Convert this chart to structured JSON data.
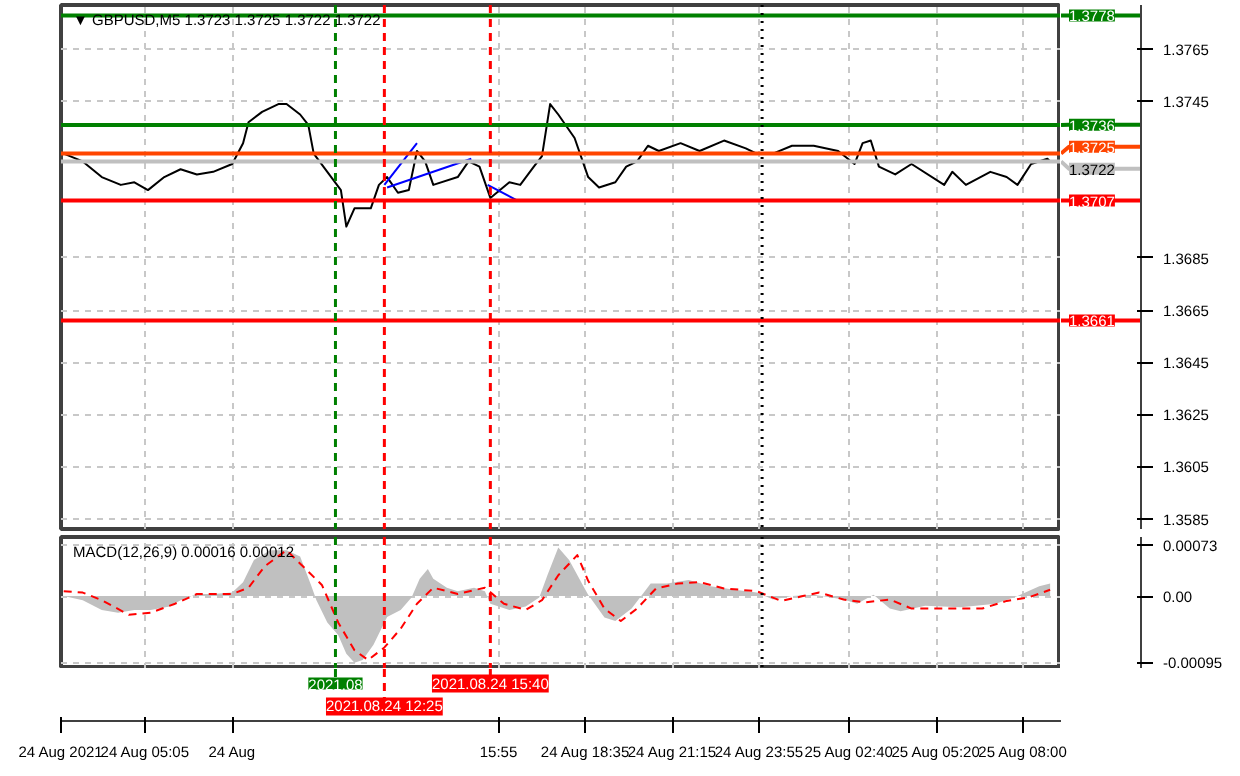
{
  "chart_data": [
    {
      "type": "line",
      "title": "▼ GBPUSD,M5  1.3723 1.3725 1.3722 1.3722",
      "grid": true,
      "tick_labels": "y",
      "xlim": [
        "2021-08-24T02:30",
        "2021-08-25T09:10"
      ],
      "ylim": [
        1.3581,
        1.3782
      ],
      "xticks": [
        {
          "value": "2021-08-24T02:30",
          "label": null
        },
        {
          "value": "2021-08-24T05:05",
          "label": null
        },
        {
          "value": "2021-08-24T07:45",
          "label": null
        },
        {
          "value": "2021-08-24T15:55",
          "label": null
        },
        {
          "value": "2021-08-24T18:35",
          "label": null
        },
        {
          "value": "2021-08-24T21:15",
          "label": null
        },
        {
          "value": "2021-08-24T23:55",
          "label": null
        },
        {
          "value": "2021-08-25T02:40",
          "label": null
        },
        {
          "value": "2021-08-25T05:20",
          "label": null
        },
        {
          "value": "2021-08-25T08:00",
          "label": null
        }
      ],
      "yticks": [
        1.3765,
        1.3745,
        1.3685,
        1.3665,
        1.3645,
        1.3625,
        1.3605,
        1.3585
      ],
      "series": [
        {
          "color": "#000000",
          "x": [
            "2021-08-24T02:35",
            "2021-08-24T03:10",
            "2021-08-24T03:45",
            "2021-08-24T04:20",
            "2021-08-24T04:45",
            "2021-08-24T05:10",
            "2021-08-24T05:40",
            "2021-08-24T06:10",
            "2021-08-24T06:40",
            "2021-08-24T07:10",
            "2021-08-24T07:45",
            "2021-08-24T08:05",
            "2021-08-24T08:15",
            "2021-08-24T08:40",
            "2021-08-24T09:10",
            "2021-08-24T09:25",
            "2021-08-24T09:50",
            "2021-08-24T10:05",
            "2021-08-24T10:15",
            "2021-08-24T10:40",
            "2021-08-24T11:05",
            "2021-08-24T11:15",
            "2021-08-24T11:30",
            "2021-08-24T12:00",
            "2021-08-24T12:15",
            "2021-08-24T12:30",
            "2021-08-24T12:50",
            "2021-08-24T13:10",
            "2021-08-24T13:25",
            "2021-08-24T13:40",
            "2021-08-24T13:55",
            "2021-08-24T14:40",
            "2021-08-24T15:00",
            "2021-08-24T15:20",
            "2021-08-24T15:40",
            "2021-08-24T16:15",
            "2021-08-24T16:35",
            "2021-08-24T17:00",
            "2021-08-24T17:15",
            "2021-08-24T17:30",
            "2021-08-24T17:45",
            "2021-08-24T18:15",
            "2021-08-24T18:40",
            "2021-08-24T19:00",
            "2021-08-24T19:30",
            "2021-08-24T19:50",
            "2021-08-24T20:10",
            "2021-08-24T20:30",
            "2021-08-24T20:50",
            "2021-08-24T21:30",
            "2021-08-24T22:05",
            "2021-08-24T22:50",
            "2021-08-24T23:30",
            "2021-08-24T23:50",
            "2021-08-25T00:20",
            "2021-08-25T00:55",
            "2021-08-25T01:35",
            "2021-08-25T02:20",
            "2021-08-25T02:50",
            "2021-08-25T03:05",
            "2021-08-25T03:20",
            "2021-08-25T03:35",
            "2021-08-25T04:05",
            "2021-08-25T04:35",
            "2021-08-25T05:35",
            "2021-08-25T05:50",
            "2021-08-25T06:15",
            "2021-08-25T07:00",
            "2021-08-25T07:30",
            "2021-08-25T07:50",
            "2021-08-25T08:15",
            "2021-08-25T08:45",
            "2021-08-25T08:50"
          ],
          "values": [
            1.3725,
            1.3722,
            1.3716,
            1.3713,
            1.3714,
            1.3711,
            1.3716,
            1.3719,
            1.3717,
            1.3718,
            1.3721,
            1.3729,
            1.3737,
            1.3741,
            1.3744,
            1.3744,
            1.374,
            1.3736,
            1.3725,
            1.3718,
            1.3711,
            1.3697,
            1.3704,
            1.3704,
            1.3713,
            1.3716,
            1.371,
            1.3711,
            1.3726,
            1.3722,
            1.3713,
            1.3716,
            1.3722,
            1.372,
            1.3708,
            1.3714,
            1.3713,
            1.372,
            1.3724,
            1.3744,
            1.374,
            1.3731,
            1.3716,
            1.3712,
            1.3714,
            1.372,
            1.3722,
            1.3728,
            1.3726,
            1.3729,
            1.3726,
            1.373,
            1.3727,
            1.3725,
            1.3725,
            1.3728,
            1.3728,
            1.3726,
            1.3721,
            1.3729,
            1.373,
            1.372,
            1.3717,
            1.3721,
            1.3713,
            1.3718,
            1.3713,
            1.3718,
            1.3716,
            1.3713,
            1.3721,
            1.3723,
            1.3722
          ]
        },
        {
          "color": "#0000ff",
          "x": [
            "2021-08-24T12:25",
            "2021-08-24T13:25"
          ],
          "values": [
            1.3713,
            1.3729
          ]
        },
        {
          "color": "#0000ff",
          "x": [
            "2021-08-24T12:30",
            "2021-08-24T15:05"
          ],
          "values": [
            1.3712,
            1.3723
          ]
        },
        {
          "color": "#0000ff",
          "x": [
            "2021-08-24T15:35",
            "2021-08-24T16:30"
          ],
          "values": [
            1.3713,
            1.3707
          ]
        }
      ],
      "ref_lines": [
        {
          "axis": "y",
          "value": 1.3778,
          "label": "1.3778",
          "color": "#008000",
          "line_style": "solid"
        },
        {
          "axis": "y",
          "value": 1.3736,
          "label": "1.3736",
          "color": "#008000",
          "line_style": "solid"
        },
        {
          "axis": "y",
          "value": 1.3725,
          "label": "1.3725",
          "color": "#ff4500",
          "line_style": "solid"
        },
        {
          "axis": "y",
          "value": 1.3722,
          "label": "1.3722",
          "color": "#c0c0c0",
          "line_style": "solid"
        },
        {
          "axis": "y",
          "value": 1.3707,
          "label": "1.3707",
          "color": "#ff0000",
          "line_style": "solid"
        },
        {
          "axis": "y",
          "value": 1.3661,
          "label": "1.3661",
          "color": "#ff0000",
          "line_style": "solid"
        },
        {
          "axis": "x",
          "value": "2021-08-24T10:55",
          "color": "#008000",
          "line_style": "dashed"
        },
        {
          "axis": "x",
          "value": "2021-08-24T12:25",
          "color": "#ff0000",
          "line_style": "dashed"
        },
        {
          "axis": "x",
          "value": "2021-08-24T15:40",
          "color": "#ff0000",
          "line_style": "dashed"
        },
        {
          "axis": "x",
          "value": "2021-08-25T00:00",
          "color": "#000000",
          "line_style": "dotted"
        }
      ]
    },
    {
      "type": "line",
      "title": "MACD(12,26,9) 0.00016 0.00012",
      "grid": true,
      "xlim": [
        "2021-08-24T02:30",
        "2021-08-25T09:10"
      ],
      "ylim": [
        -0.00105,
        0.00085
      ],
      "xticks": [
        {
          "value": "2021-08-24T02:30",
          "label": "24 Aug 2021"
        },
        {
          "value": "2021-08-24T05:05",
          "label": "24 Aug 05:05"
        },
        {
          "value": "2021-08-24T07:45",
          "label": "24 Aug"
        },
        {
          "value": "2021-08-24T15:55",
          "label": "15:55"
        },
        {
          "value": "2021-08-24T18:35",
          "label": "24 Aug 18:35"
        },
        {
          "value": "2021-08-24T21:15",
          "label": "24 Aug 21:15"
        },
        {
          "value": "2021-08-24T23:55",
          "label": "24 Aug 23:55"
        },
        {
          "value": "2021-08-25T02:40",
          "label": "25 Aug 02:40"
        },
        {
          "value": "2021-08-25T05:20",
          "label": "25 Aug 05:20"
        },
        {
          "value": "2021-08-25T08:00",
          "label": "25 Aug 08:00"
        }
      ],
      "yticks": [
        {
          "value": 0.00073,
          "label": "0.00073"
        },
        {
          "value": 0,
          "label": "0.00"
        },
        {
          "value": -0.00095,
          "label": "-0.00095"
        }
      ],
      "series": [
        {
          "type": "area",
          "color": "#c0c0c0",
          "x": [
            "2021-08-24T02:35",
            "2021-08-24T03:10",
            "2021-08-24T03:45",
            "2021-08-24T04:15",
            "2021-08-24T04:45",
            "2021-08-24T05:15",
            "2021-08-24T05:50",
            "2021-08-24T06:10",
            "2021-08-24T06:40",
            "2021-08-24T07:10",
            "2021-08-24T07:45",
            "2021-08-24T08:05",
            "2021-08-24T08:25",
            "2021-08-24T08:55",
            "2021-08-24T09:25",
            "2021-08-24T09:50",
            "2021-08-24T10:10",
            "2021-08-24T10:20",
            "2021-08-24T10:40",
            "2021-08-24T11:00",
            "2021-08-24T11:15",
            "2021-08-24T11:30",
            "2021-08-24T11:45",
            "2021-08-24T12:05",
            "2021-08-24T12:30",
            "2021-08-24T12:55",
            "2021-08-24T13:15",
            "2021-08-24T13:30",
            "2021-08-24T13:45",
            "2021-08-24T13:55",
            "2021-08-24T14:20",
            "2021-08-24T14:40",
            "2021-08-24T15:10",
            "2021-08-24T15:30",
            "2021-08-24T15:40",
            "2021-08-24T16:15",
            "2021-08-24T16:45",
            "2021-08-24T17:10",
            "2021-08-24T17:25",
            "2021-08-24T17:45",
            "2021-08-24T18:05",
            "2021-08-24T18:30",
            "2021-08-24T18:40",
            "2021-08-24T19:10",
            "2021-08-24T19:30",
            "2021-08-24T20:00",
            "2021-08-24T20:35",
            "2021-08-24T21:05",
            "2021-08-24T21:45",
            "2021-08-24T22:25",
            "2021-08-24T23:10",
            "2021-08-24T23:50",
            "2021-08-25T00:20",
            "2021-08-25T00:55",
            "2021-08-25T01:35",
            "2021-08-25T02:30",
            "2021-08-25T02:55",
            "2021-08-25T03:25",
            "2021-08-25T03:55",
            "2021-08-25T04:15",
            "2021-08-25T05:00",
            "2021-08-25T06:05",
            "2021-08-25T07:10",
            "2021-08-25T07:50",
            "2021-08-25T08:30",
            "2021-08-25T08:50"
          ],
          "values": [
            0,
            -6e-05,
            -0.0002,
            -0.00024,
            -0.0002,
            -0.0002,
            -0.00015,
            -6e-05,
            3e-05,
            3e-05,
            5e-05,
            0.0002,
            0.00052,
            0.00066,
            0.00066,
            0.00057,
            0.00016,
            -6e-05,
            -0.00038,
            -0.00056,
            -0.00083,
            -0.00096,
            -0.00092,
            -0.0007,
            -0.0003,
            -0.0002,
            -2e-05,
            0.00025,
            0.00039,
            0.00025,
            0.00012,
            7e-05,
            0.00012,
            7e-05,
            -0.00011,
            -0.0002,
            -0.00015,
            -2e-05,
            0.0003,
            0.0007,
            0.00052,
            0.00016,
            2e-05,
            -0.00031,
            -0.00036,
            -0.00018,
            0.00018,
            0.00018,
            0.00023,
            0.00014,
            9e-05,
            5e-05,
            -5e-05,
            0,
            2e-05,
            -5e-05,
            -0.00011,
            2e-05,
            -0.00018,
            -0.00022,
            -0.00014,
            -0.00016,
            -0.00011,
            0,
            0.00014,
            0.00018
          ]
        },
        {
          "color": "#ff0000",
          "line_style": "dashed",
          "x": [
            "2021-08-24T02:35",
            "2021-08-24T03:10",
            "2021-08-24T03:45",
            "2021-08-24T04:35",
            "2021-08-24T05:15",
            "2021-08-24T06:00",
            "2021-08-24T06:40",
            "2021-08-24T07:45",
            "2021-08-24T08:15",
            "2021-08-24T08:45",
            "2021-08-24T09:25",
            "2021-08-24T10:00",
            "2021-08-24T10:30",
            "2021-08-24T11:00",
            "2021-08-24T11:30",
            "2021-08-24T11:55",
            "2021-08-24T12:25",
            "2021-08-24T12:55",
            "2021-08-24T13:25",
            "2021-08-24T13:55",
            "2021-08-24T14:40",
            "2021-08-24T15:30",
            "2021-08-24T16:05",
            "2021-08-24T16:45",
            "2021-08-24T17:15",
            "2021-08-24T17:45",
            "2021-08-24T18:20",
            "2021-08-24T18:40",
            "2021-08-24T19:10",
            "2021-08-24T19:40",
            "2021-08-24T20:10",
            "2021-08-24T20:45",
            "2021-08-24T21:25",
            "2021-08-24T22:05",
            "2021-08-24T22:50",
            "2021-08-24T23:50",
            "2021-08-25T00:35",
            "2021-08-25T01:15",
            "2021-08-25T01:45",
            "2021-08-25T02:30",
            "2021-08-25T03:10",
            "2021-08-25T03:55",
            "2021-08-25T04:35",
            "2021-08-25T05:45",
            "2021-08-25T06:45",
            "2021-08-25T07:30",
            "2021-08-25T08:10",
            "2021-08-25T08:50"
          ],
          "values": [
            7e-05,
            5e-05,
            -6e-05,
            -0.00027,
            -0.00024,
            -0.00011,
            3e-05,
            3e-05,
            0.00012,
            0.00043,
            0.00066,
            0.00039,
            0.00016,
            -0.00038,
            -0.00078,
            -0.00092,
            -0.00074,
            -0.00047,
            -0.00011,
            0.00012,
            3e-05,
            0.00012,
            -0.00011,
            -0.0002,
            -6e-05,
            0.0003,
            0.00059,
            0.00022,
            -0.00018,
            -0.00036,
            -0.00018,
            0.00011,
            0.00018,
            0.0002,
            0.00011,
            7e-05,
            -7e-05,
            0,
            5e-05,
            -5e-05,
            -9e-05,
            -5e-05,
            -0.00018,
            -0.00018,
            -0.00018,
            -7e-05,
            -2e-05,
            9e-05
          ]
        }
      ],
      "ref_lines": [
        {
          "axis": "x",
          "value": "2021-08-24T10:55",
          "label": "2021.08",
          "color": "#008000",
          "line_style": "dashed"
        },
        {
          "axis": "x",
          "value": "2021-08-24T12:25",
          "label": "2021.08.24 12:25",
          "color": "#ff0000",
          "line_style": "dashed"
        },
        {
          "axis": "x",
          "value": "2021-08-24T15:40",
          "label": "2021.08.24 15:40",
          "color": "#ff0000",
          "line_style": "dashed"
        },
        {
          "axis": "x",
          "value": "2021-08-25T00:00",
          "color": "#000000",
          "line_style": "dotted"
        }
      ]
    }
  ]
}
